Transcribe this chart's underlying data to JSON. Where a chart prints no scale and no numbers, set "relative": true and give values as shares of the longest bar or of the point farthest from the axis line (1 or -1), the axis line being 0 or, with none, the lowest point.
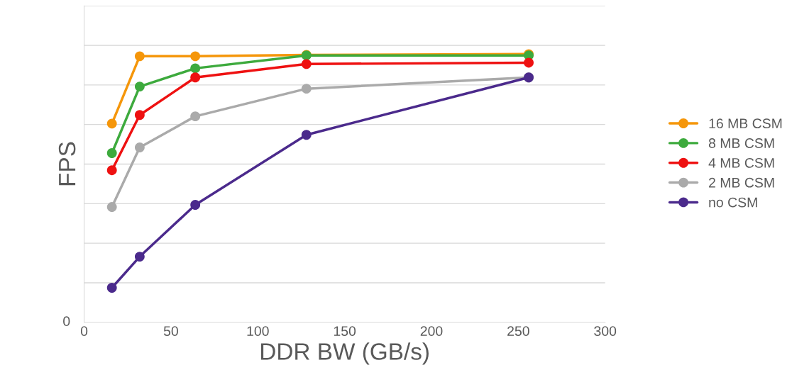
{
  "chart_data": {
    "type": "line",
    "xlabel": "DDR BW (GB/s)",
    "ylabel": "FPS",
    "relative": true,
    "x": [
      16,
      32,
      64,
      128,
      256
    ],
    "xlim": [
      0,
      300
    ],
    "xticks": [
      0,
      50,
      100,
      150,
      200,
      250,
      300
    ],
    "annotations": [
      "0"
    ],
    "grid": "y",
    "legend": "right",
    "marker": "circle",
    "line_style": "solid",
    "series": [
      {
        "name": "16 MB CSM",
        "color": "#f5960a",
        "values": [
          0.741,
          0.992,
          0.992,
          0.997,
          1
        ]
      },
      {
        "name": "8 MB CSM",
        "color": "#3daa3d",
        "values": [
          0.631,
          0.879,
          0.947,
          0.995,
          0.995
        ]
      },
      {
        "name": "4 MB CSM",
        "color": "#ee1111",
        "values": [
          0.567,
          0.773,
          0.913,
          0.963,
          0.968
        ]
      },
      {
        "name": "2 MB CSM",
        "color": "#aaaaaa",
        "values": [
          0.43,
          0.652,
          0.768,
          0.871,
          0.913
        ]
      },
      {
        "name": "no CSM",
        "color": "#4b2a8c",
        "values": [
          0.129,
          0.245,
          0.438,
          0.699,
          0.913
        ]
      }
    ]
  }
}
